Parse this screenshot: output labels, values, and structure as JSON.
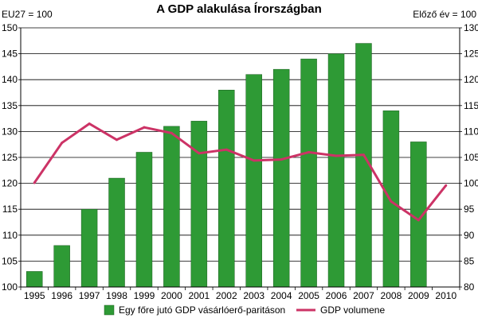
{
  "chart_data": {
    "type": "bar",
    "title": "A GDP alakulása Írországban",
    "left_axis_label": "EU27 = 100",
    "right_axis_label": "Előző év = 100",
    "categories": [
      "1995",
      "1996",
      "1997",
      "1998",
      "1999",
      "2000",
      "2001",
      "2002",
      "2003",
      "2004",
      "2005",
      "2006",
      "2007",
      "2008",
      "2009",
      "2010"
    ],
    "left_ylim": [
      100,
      150
    ],
    "left_ticks": [
      100,
      105,
      110,
      115,
      120,
      125,
      130,
      135,
      140,
      145,
      150
    ],
    "right_ylim": [
      80,
      130
    ],
    "right_ticks": [
      80,
      85,
      90,
      95,
      100,
      105,
      110,
      115,
      120,
      125,
      130
    ],
    "grid": true,
    "legend_position": "bottom",
    "series": [
      {
        "name": "Egy főre jutó GDP vásárlóerő-paritáson",
        "type": "bar",
        "axis": "left",
        "color": "#2e9a35",
        "values": [
          103,
          108,
          115,
          121,
          126,
          131,
          132,
          138,
          141,
          142,
          144,
          145,
          147,
          134,
          128,
          null
        ]
      },
      {
        "name": "GDP volumene",
        "type": "line",
        "axis": "right",
        "color": "#cc3366",
        "values": [
          100.1,
          107.8,
          111.5,
          108.4,
          110.8,
          109.7,
          105.8,
          106.5,
          104.4,
          104.6,
          106.0,
          105.3,
          105.5,
          96.5,
          92.9,
          99.6
        ]
      }
    ]
  }
}
